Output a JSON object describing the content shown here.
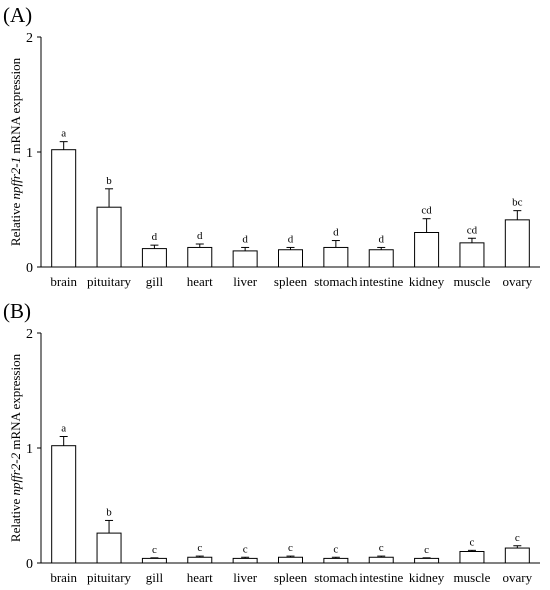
{
  "chart_data": [
    {
      "type": "bar",
      "panel_label": "(A)",
      "ylabel_parts": [
        "Relative ",
        "npffr2-1",
        " mRNA expression"
      ],
      "categories": [
        "brain",
        "pituitary",
        "gill",
        "heart",
        "liver",
        "spleen",
        "stomach",
        "intestine",
        "kidney",
        "muscle",
        "ovary"
      ],
      "values": [
        1.02,
        0.52,
        0.16,
        0.17,
        0.14,
        0.15,
        0.17,
        0.15,
        0.3,
        0.21,
        0.41
      ],
      "errors": [
        0.07,
        0.16,
        0.03,
        0.03,
        0.03,
        0.02,
        0.06,
        0.02,
        0.12,
        0.04,
        0.08
      ],
      "significance": [
        "a",
        "b",
        "d",
        "d",
        "d",
        "d",
        "d",
        "d",
        "cd",
        "cd",
        "bc"
      ],
      "yticks": [
        "0",
        "1",
        "2"
      ],
      "ylim": [
        0,
        2
      ],
      "grid": false
    },
    {
      "type": "bar",
      "panel_label": "(B)",
      "ylabel_parts": [
        "Relative ",
        "npffr2-2",
        " mRNA expression"
      ],
      "categories": [
        "brain",
        "pituitary",
        "gill",
        "heart",
        "liver",
        "spleen",
        "stomach",
        "intestine",
        "kidney",
        "muscle",
        "ovary"
      ],
      "values": [
        1.02,
        0.26,
        0.04,
        0.05,
        0.04,
        0.05,
        0.04,
        0.05,
        0.04,
        0.1,
        0.13
      ],
      "errors": [
        0.08,
        0.11,
        0.005,
        0.01,
        0.01,
        0.01,
        0.01,
        0.01,
        0.005,
        0.01,
        0.02
      ],
      "significance": [
        "a",
        "b",
        "c",
        "c",
        "c",
        "c",
        "c",
        "c",
        "c",
        "c",
        "c"
      ],
      "yticks": [
        "0",
        "1",
        "2"
      ],
      "ylim": [
        0,
        2
      ],
      "grid": false
    }
  ]
}
